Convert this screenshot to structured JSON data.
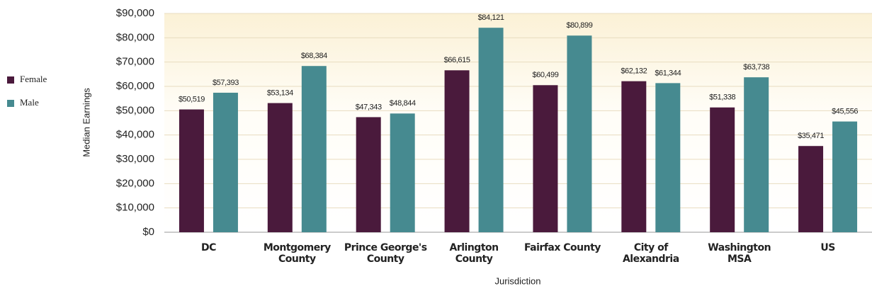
{
  "chart_data": {
    "type": "bar",
    "categories": [
      "DC",
      "Montgomery\nCounty",
      "Prince George's\nCounty",
      "Arlington\nCounty",
      "Fairfax County",
      "City of\nAlexandria",
      "Washington\nMSA",
      "US"
    ],
    "series": [
      {
        "name": "Female",
        "color": "#4a1a3c",
        "values": [
          50519,
          53134,
          47343,
          66615,
          60499,
          62132,
          51338,
          35471
        ],
        "value_labels": [
          "$50,519",
          "$53,134",
          "$47,343",
          "$66,615",
          "$60,499",
          "$62,132",
          "$51,338",
          "$35,471"
        ]
      },
      {
        "name": "Male",
        "color": "#468a90",
        "values": [
          57393,
          68384,
          48844,
          84121,
          80899,
          61344,
          63738,
          45556
        ],
        "value_labels": [
          "$57,393",
          "$68,384",
          "$48,844",
          "$84,121",
          "$80,899",
          "$61,344",
          "$63,738",
          "$45,556"
        ]
      }
    ],
    "ylim": [
      0,
      90000
    ],
    "yticks": [
      {
        "value": 0,
        "label": "$0"
      },
      {
        "value": 10000,
        "label": "$10,000"
      },
      {
        "value": 20000,
        "label": "$20,000"
      },
      {
        "value": 30000,
        "label": "$30,000"
      },
      {
        "value": 40000,
        "label": "$40,000"
      },
      {
        "value": 50000,
        "label": "$50,000"
      },
      {
        "value": 60000,
        "label": "$60,000"
      },
      {
        "value": 70000,
        "label": "$70,000"
      },
      {
        "value": 80000,
        "label": "$80,000"
      },
      {
        "value": 90000,
        "label": "$90,000"
      }
    ],
    "y_label": "Median Earnings",
    "x_label": "Jurisdiction",
    "grid": true,
    "legend": "left"
  }
}
